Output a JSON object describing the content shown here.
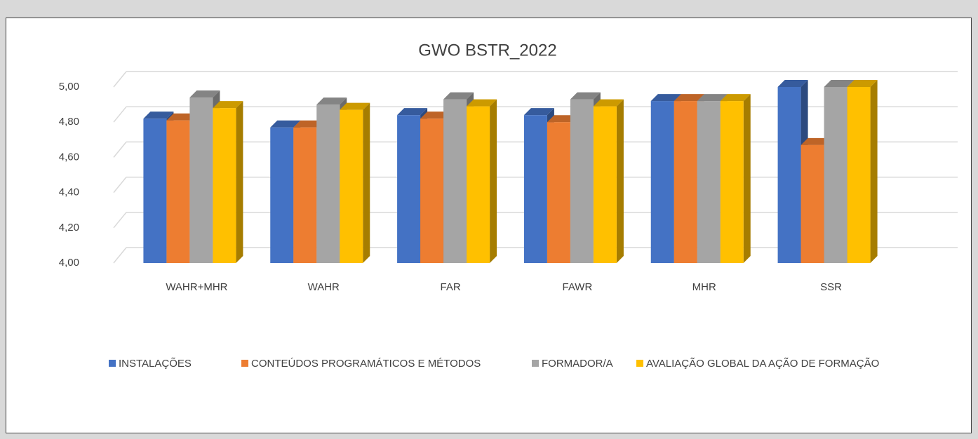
{
  "chart_data": {
    "type": "bar3d",
    "title": "GWO BSTR_2022",
    "categories": [
      "WAHR+MHR",
      "WAHR",
      "FAR",
      "FAWR",
      "MHR",
      "SSR"
    ],
    "series": [
      {
        "name": "INSTALAÇÕES",
        "color": "#4472c4",
        "values": [
          4.82,
          4.77,
          4.84,
          4.84,
          4.92,
          5.0
        ]
      },
      {
        "name": "CONTEÚDOS PROGRAMÁTICOS E MÉTODOS",
        "color": "#ed7d31",
        "values": [
          4.81,
          4.77,
          4.82,
          4.8,
          4.92,
          4.67
        ]
      },
      {
        "name": "FORMADOR/A",
        "color": "#a5a5a5",
        "values": [
          4.94,
          4.9,
          4.93,
          4.93,
          4.92,
          5.0
        ]
      },
      {
        "name": "AVALIAÇÃO GLOBAL DA AÇÃO DE FORMAÇÃO",
        "color": "#ffc000",
        "values": [
          4.88,
          4.87,
          4.89,
          4.89,
          4.92,
          5.0
        ]
      }
    ],
    "ylim": [
      4,
      5
    ],
    "yticks": [
      {
        "value": 4,
        "label": "4,00"
      },
      {
        "value": 4.2,
        "label": "4,20"
      },
      {
        "value": 4.4,
        "label": "4,40"
      },
      {
        "value": 4.6,
        "label": "4,60"
      },
      {
        "value": 4.8,
        "label": "4,80"
      },
      {
        "value": 5,
        "label": "5,00"
      }
    ],
    "grid": true,
    "legend": "bottom"
  }
}
